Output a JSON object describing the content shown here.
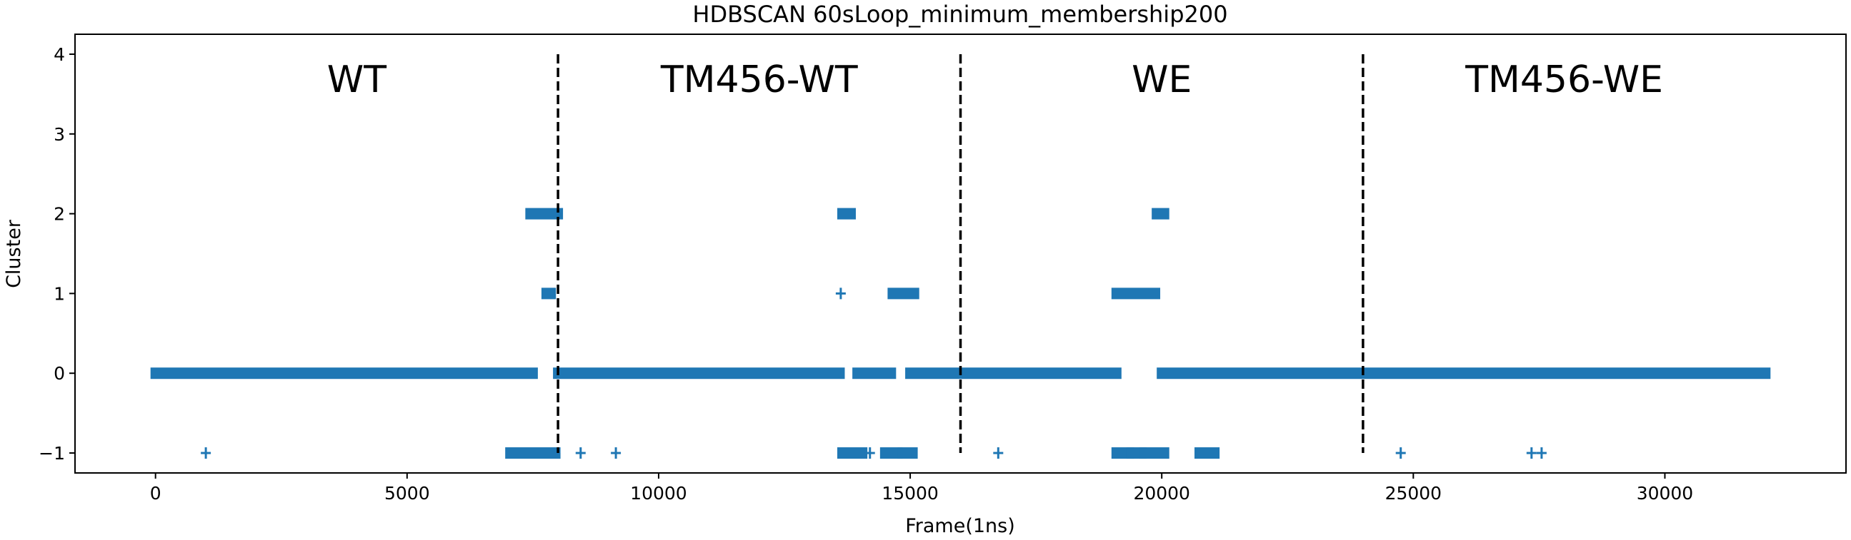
{
  "chart_data": {
    "type": "scatter",
    "title": "HDBSCAN 60sLoop_minimum_membership200",
    "xlabel": "Frame(1ns)",
    "ylabel": "Cluster",
    "xlim": [
      -1600,
      33600
    ],
    "ylim": [
      -1.25,
      4.25
    ],
    "xticks": [
      0,
      5000,
      10000,
      15000,
      20000,
      25000,
      30000
    ],
    "yticks": [
      -1,
      0,
      1,
      2,
      3,
      4
    ],
    "ytick_labels": [
      "−1",
      "0",
      "1",
      "2",
      "3",
      "4"
    ],
    "grid": false,
    "marker": "+",
    "color": "#1f77b4",
    "divider_color": "#000000",
    "dividers": [
      8000,
      16000,
      24000
    ],
    "regions": [
      {
        "label": "WT",
        "x": 4000
      },
      {
        "label": "TM456-WT",
        "x": 12000
      },
      {
        "label": "WE",
        "x": 20000
      },
      {
        "label": "TM456-WE",
        "x": 28000
      }
    ],
    "series": [
      {
        "segments": [
          {
            "cluster": 0,
            "from": 0,
            "to": 7500
          },
          {
            "cluster": 0,
            "from": 8000,
            "to": 13600
          },
          {
            "cluster": 0,
            "from": 13950,
            "to": 14620
          },
          {
            "cluster": 0,
            "from": 15000,
            "to": 19100
          },
          {
            "cluster": 0,
            "from": 20000,
            "to": 32000
          },
          {
            "cluster": 1,
            "from": 7770,
            "to": 7860
          },
          {
            "cluster": 1,
            "from": 14650,
            "to": 15080
          },
          {
            "cluster": 1,
            "from": 19100,
            "to": 19870
          },
          {
            "cluster": 2,
            "from": 7450,
            "to": 8000
          },
          {
            "cluster": 2,
            "from": 13650,
            "to": 13820
          },
          {
            "cluster": 2,
            "from": 19900,
            "to": 20050
          },
          {
            "cluster": -1,
            "from": 7050,
            "to": 7950
          },
          {
            "cluster": -1,
            "from": 13650,
            "to": 14050
          },
          {
            "cluster": -1,
            "from": 14500,
            "to": 14750
          },
          {
            "cluster": -1,
            "from": 14850,
            "to": 15050
          },
          {
            "cluster": -1,
            "from": 19100,
            "to": 19350
          },
          {
            "cluster": -1,
            "from": 19400,
            "to": 19600
          },
          {
            "cluster": -1,
            "from": 19650,
            "to": 20050
          },
          {
            "cluster": -1,
            "from": 20750,
            "to": 21050
          }
        ],
        "points": [
          {
            "cluster": 1,
            "x": 13620
          },
          {
            "cluster": -1,
            "x": 1000
          },
          {
            "cluster": -1,
            "x": 8450
          },
          {
            "cluster": -1,
            "x": 9150
          },
          {
            "cluster": -1,
            "x": 14200
          },
          {
            "cluster": -1,
            "x": 16750
          },
          {
            "cluster": -1,
            "x": 24750
          },
          {
            "cluster": -1,
            "x": 27350
          },
          {
            "cluster": -1,
            "x": 27550
          }
        ]
      }
    ]
  }
}
